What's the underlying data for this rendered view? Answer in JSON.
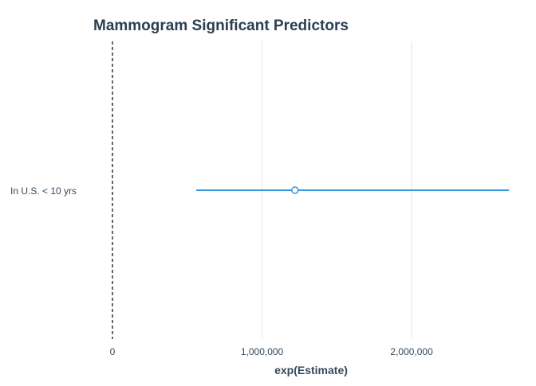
{
  "colors": {
    "title": "#2c3e50",
    "text": "#34495e",
    "grid": "#e6e6e6",
    "reference_line": "#000000",
    "series": "#3498db",
    "point_fill": "#ffffff"
  },
  "chart_data": {
    "type": "forest",
    "title": "Mammogram Significant Predictors",
    "xlabel": "exp(Estimate)",
    "ylabel": "",
    "xlim": [
      0,
      2650000
    ],
    "x_ticks": [
      0,
      1000000,
      2000000
    ],
    "x_tick_labels": [
      "0",
      "1,000,000",
      "2,000,000"
    ],
    "reference_line_x": 0,
    "grid": "vertical",
    "legend": "none",
    "series": [
      {
        "label": "In U.S. < 10 yrs",
        "estimate": 1220000,
        "lower": 560000,
        "upper": 2650000
      }
    ]
  }
}
